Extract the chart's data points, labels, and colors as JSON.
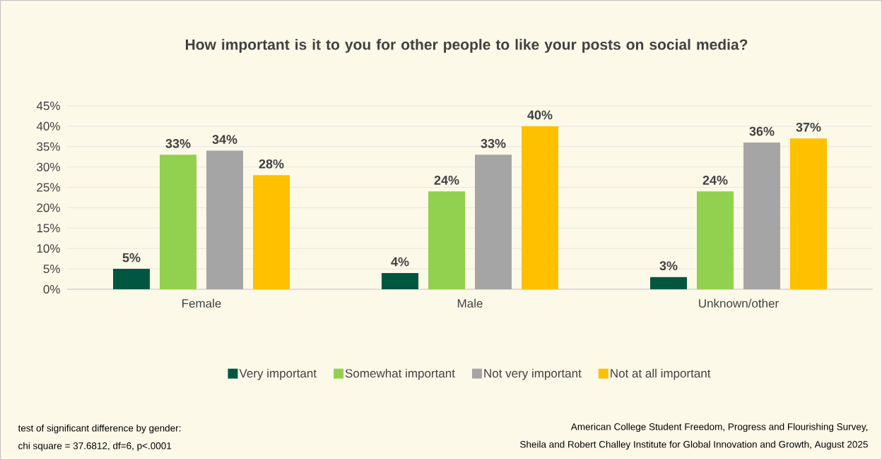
{
  "chart_data": {
    "type": "bar",
    "title": "How important is it to you for other people to like your posts on social media?",
    "categories": [
      "Female",
      "Male",
      "Unknown/other"
    ],
    "series": [
      {
        "name": "Very important",
        "color": "#00573f",
        "values": [
          5,
          4,
          3
        ],
        "value_labels": [
          "5%",
          "4%",
          "3%"
        ]
      },
      {
        "name": "Somewhat important",
        "color": "#92d050",
        "values": [
          33,
          24,
          24
        ],
        "value_labels": [
          "33%",
          "24%",
          "24%"
        ]
      },
      {
        "name": "Not very important",
        "color": "#a5a5a5",
        "values": [
          34,
          33,
          36
        ],
        "value_labels": [
          "34%",
          "33%",
          "36%"
        ]
      },
      {
        "name": "Not at all important",
        "color": "#ffc000",
        "values": [
          28,
          40,
          37
        ],
        "value_labels": [
          "28%",
          "40%",
          "37%"
        ]
      }
    ],
    "ylim": [
      0,
      45
    ],
    "yticks": [
      {
        "value": 0,
        "label": "0%"
      },
      {
        "value": 5,
        "label": "5%"
      },
      {
        "value": 10,
        "label": "10%"
      },
      {
        "value": 15,
        "label": "15%"
      },
      {
        "value": 20,
        "label": "20%"
      },
      {
        "value": 25,
        "label": "25%"
      },
      {
        "value": 30,
        "label": "30%"
      },
      {
        "value": 35,
        "label": "35%"
      },
      {
        "value": 40,
        "label": "40%"
      },
      {
        "value": 45,
        "label": "45%"
      }
    ],
    "grid": "y",
    "legend": "bottom",
    "annotations": [
      "test of significant difference by gender:",
      "chi square = 37.6812, df=6, p<.0001",
      "American College Student Freedom, Progress and Flourishing Survey,",
      "Sheila and Robert Challey Institute for Global Innovation and Growth, August 2025"
    ]
  }
}
